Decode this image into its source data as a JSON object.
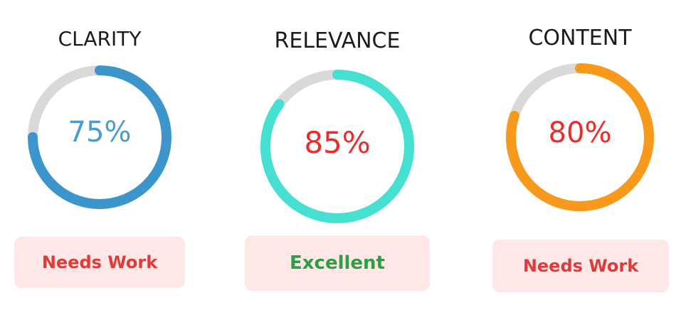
{
  "metrics": [
    {
      "title": "CLARITY",
      "percent": 75,
      "value_text": "75%",
      "status": "Needs Work",
      "ring_color": "#3d96cb",
      "value_color": "#4a9ccf",
      "status_color": "#e03a3a"
    },
    {
      "title": "RELEVANCE",
      "percent": 85,
      "value_text": "85%",
      "status": "Excellent",
      "ring_color": "#45e0d2",
      "value_color": "#ee2b2b",
      "status_color": "#2e9e45"
    },
    {
      "title": "CONTENT",
      "percent": 80,
      "value_text": "80%",
      "status": "Needs Work",
      "ring_color": "#f7991b",
      "value_color": "#ee2b2b",
      "status_color": "#e03a3a"
    }
  ],
  "colors": {
    "track": "#d9d9d9",
    "badge_background": "#fde7e7"
  }
}
